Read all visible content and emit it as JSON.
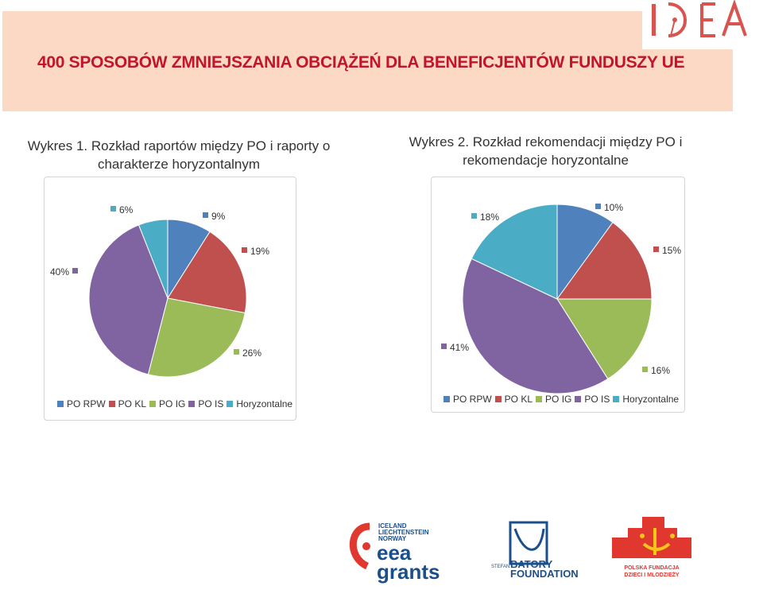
{
  "header": {
    "title": "400 SPOSOBÓW ZMNIEJSZANIA OBCIĄŻEŃ DLA BENEFICJENTÓW FUNDUSZY UE",
    "logo_text": "IDEA"
  },
  "charts": [
    {
      "title": "Wykres 1. Rozkład raportów między PO i raporty o charakterze horyzontalnym"
    },
    {
      "title": "Wykres 2. Rozkład rekomendacji między PO i rekomendacje horyzontalne"
    }
  ],
  "chart_data": [
    {
      "type": "pie",
      "title": "Wykres 1. Rozkład raportów między PO i raporty o charakterze horyzontalnym",
      "categories": [
        "PO RPW",
        "PO KL",
        "PO IG",
        "PO IS",
        "Horyzontalne"
      ],
      "values": [
        9,
        19,
        26,
        40,
        6
      ],
      "labels": [
        "9%",
        "19%",
        "26%",
        "40%",
        "6%"
      ],
      "colors": [
        "#4f81bd",
        "#c0504d",
        "#9bbb59",
        "#8064a2",
        "#4bacc6"
      ],
      "legend_position": "bottom"
    },
    {
      "type": "pie",
      "title": "Wykres 2. Rozkład rekomendacji między PO i rekomendacje horyzontalne",
      "categories": [
        "PO RPW",
        "PO KL",
        "PO IG",
        "PO IS",
        "Horyzontalne"
      ],
      "values": [
        10,
        15,
        16,
        41,
        18
      ],
      "labels": [
        "10%",
        "15%",
        "16%",
        "41%",
        "18%"
      ],
      "colors": [
        "#4f81bd",
        "#c0504d",
        "#9bbb59",
        "#8064a2",
        "#4bacc6"
      ],
      "legend_position": "bottom"
    }
  ],
  "footer": {
    "eea_top": [
      "ICELAND",
      "LIECHTENSTEIN",
      "NORWAY"
    ],
    "eea_main": [
      "eea",
      "grants"
    ],
    "batory_small": "STEFAN",
    "batory_main": [
      "BATORY",
      "FOUNDATION"
    ],
    "pfdim": [
      "POLSKA FUNDACJA",
      "DZIECI I MŁODZIEŻY"
    ]
  }
}
